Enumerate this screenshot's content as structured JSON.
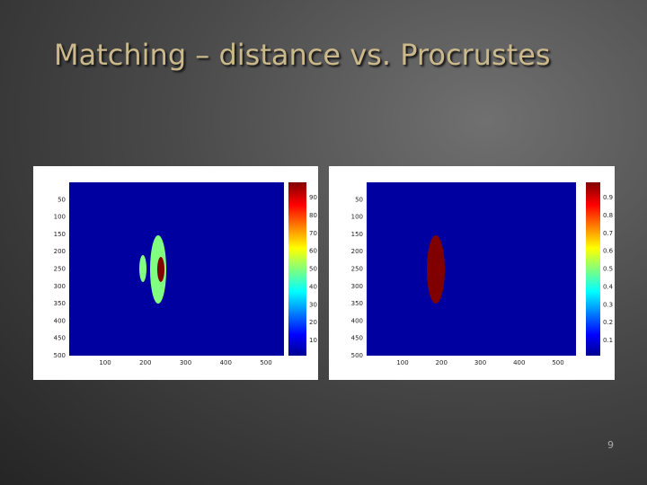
{
  "slide": {
    "title": "Matching – distance vs. Procrustes",
    "page_number": "9"
  },
  "figures": [
    {
      "y_ticks": [
        50,
        100,
        150,
        200,
        250,
        300,
        350,
        400,
        450,
        500
      ],
      "x_ticks": [
        100,
        200,
        300,
        400,
        500
      ],
      "colorbar_ticks": [
        10,
        20,
        30,
        40,
        50,
        60,
        70,
        80,
        90
      ]
    },
    {
      "y_ticks": [
        50,
        100,
        150,
        200,
        250,
        300,
        350,
        400,
        450,
        500
      ],
      "x_ticks": [
        100,
        200,
        300,
        400,
        500
      ],
      "colorbar_ticks": [
        0.1,
        0.2,
        0.3,
        0.4,
        0.5,
        0.6,
        0.7,
        0.8,
        0.9
      ]
    }
  ]
}
